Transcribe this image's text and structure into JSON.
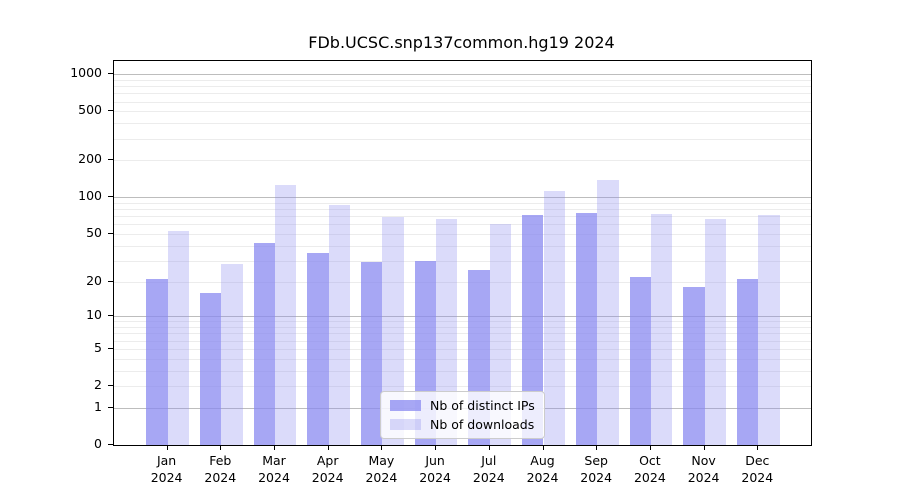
{
  "figure": {
    "title": "FDb.UCSC.snp137common.hg19 2024"
  },
  "legend": {
    "items": [
      {
        "key": "distinct-ips",
        "label": "Nb of distinct IPs",
        "color_hex": "#aaaaf8",
        "fill": "rgba(136,136,240,0.74)"
      },
      {
        "key": "downloads",
        "label": "Nb of downloads",
        "color_hex": "#d9d9f7",
        "fill": "rgba(136,136,240,0.30)"
      }
    ]
  },
  "axes": {
    "y_tick_values": [
      1000,
      500,
      200,
      100,
      50,
      20,
      10,
      5,
      2,
      1,
      0
    ],
    "y_tick_labels": [
      "1000",
      "500",
      "200",
      "100",
      "50",
      "20",
      "10",
      "5",
      "2",
      "1",
      "0"
    ],
    "x_months": [
      "Jan",
      "Feb",
      "Mar",
      "Apr",
      "May",
      "Jun",
      "Jul",
      "Aug",
      "Sep",
      "Oct",
      "Nov",
      "Dec"
    ],
    "x_year": "2024"
  },
  "chart_data": {
    "type": "bar",
    "title": "FDb.UCSC.snp137common.hg19 2024",
    "categories": [
      "Jan 2024",
      "Feb 2024",
      "Mar 2024",
      "Apr 2024",
      "May 2024",
      "Jun 2024",
      "Jul 2024",
      "Aug 2024",
      "Sep 2024",
      "Oct 2024",
      "Nov 2024",
      "Dec 2024"
    ],
    "series": [
      {
        "name": "Nb of distinct IPs",
        "key": "distinct-ips",
        "color": "#aaaaf8",
        "values": [
          21,
          16,
          42,
          35,
          29,
          30,
          25,
          71,
          74,
          22,
          18,
          21
        ]
      },
      {
        "name": "Nb of downloads",
        "key": "downloads",
        "color": "#d9d9f7",
        "values": [
          53,
          28,
          127,
          87,
          69,
          66,
          60,
          112,
          138,
          73,
          66,
          71
        ]
      }
    ],
    "yscale": "log10(value+1)",
    "ylim": [
      0,
      1280
    ],
    "ytick_values": [
      0,
      1,
      2,
      5,
      10,
      20,
      50,
      100,
      200,
      500,
      1000
    ],
    "grid": "horizontal",
    "grid_major_at": [
      1,
      10,
      100,
      1000
    ],
    "legend_position": "lower-center"
  }
}
